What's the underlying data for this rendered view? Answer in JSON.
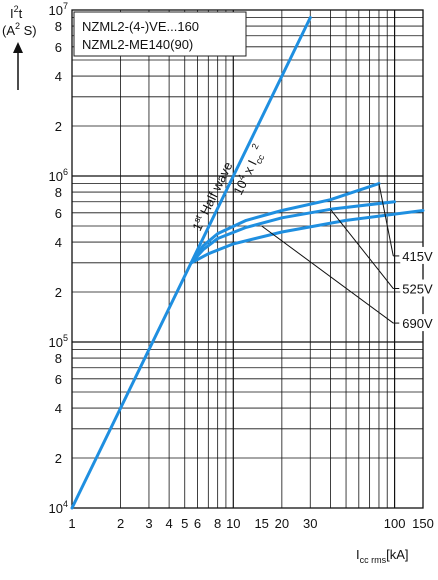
{
  "chart_data": {
    "type": "line",
    "xscale": "log",
    "yscale": "log",
    "xlim": [
      1,
      150
    ],
    "ylim": [
      10000,
      10000000
    ],
    "grid": true,
    "ylabel": {
      "main": "I",
      "sup": "2",
      "tail": "t",
      "unit_open": "(A",
      "unit_sup": "2",
      "unit_close": " S)"
    },
    "xlabel": {
      "main": "I",
      "sub": "cc rms",
      "tail": "[kA]"
    },
    "legend_box": {
      "line1": "NZML2-(4-)VE...160",
      "line2": "NZML2-ME140(90)",
      "placement": "top-left"
    },
    "x_tick_labels": [
      {
        "value": 1,
        "text": "1"
      },
      {
        "value": 2,
        "text": "2"
      },
      {
        "value": 3,
        "text": "3"
      },
      {
        "value": 4,
        "text": "4"
      },
      {
        "value": 5,
        "text": "5"
      },
      {
        "value": 6,
        "text": "6"
      },
      {
        "value": 8,
        "text": "8"
      },
      {
        "value": 10,
        "text": "10"
      },
      {
        "value": 15,
        "text": "15"
      },
      {
        "value": 20,
        "text": "20"
      },
      {
        "value": 30,
        "text": "30"
      },
      {
        "value": 100,
        "text": "100"
      },
      {
        "value": 150,
        "text": "150"
      }
    ],
    "y_tick_labels": [
      {
        "value": 10000,
        "mant": "10",
        "exp": "4"
      },
      {
        "value": 20000,
        "mant": "2",
        "exp": ""
      },
      {
        "value": 40000,
        "mant": "4",
        "exp": ""
      },
      {
        "value": 60000,
        "mant": "6",
        "exp": ""
      },
      {
        "value": 80000,
        "mant": "8",
        "exp": ""
      },
      {
        "value": 100000,
        "mant": "10",
        "exp": "5"
      },
      {
        "value": 200000,
        "mant": "2",
        "exp": ""
      },
      {
        "value": 400000,
        "mant": "4",
        "exp": ""
      },
      {
        "value": 600000,
        "mant": "6",
        "exp": ""
      },
      {
        "value": 800000,
        "mant": "8",
        "exp": ""
      },
      {
        "value": 1000000,
        "mant": "10",
        "exp": "6"
      },
      {
        "value": 2000000,
        "mant": "2",
        "exp": ""
      },
      {
        "value": 4000000,
        "mant": "4",
        "exp": ""
      },
      {
        "value": 6000000,
        "mant": "6",
        "exp": ""
      },
      {
        "value": 8000000,
        "mant": "8",
        "exp": ""
      },
      {
        "value": 10000000,
        "mant": "10",
        "exp": "7"
      }
    ],
    "half_wave_label": {
      "pre": "1",
      "sup": "st",
      "post": " Half wave"
    },
    "formula_label": {
      "pre": "10",
      "sup": "4",
      "mid": " x I",
      "sub": "cc",
      "tail": " 2"
    },
    "series": [
      {
        "name": "1st Half wave 10^4 x Icc^2",
        "color": "#1f8fe0",
        "points": [
          [
            1,
            10000
          ],
          [
            30,
            9000000
          ]
        ]
      },
      {
        "name": "415V",
        "color": "#1f8fe0",
        "points": [
          [
            5.5,
            300000
          ],
          [
            6.5,
            380000
          ],
          [
            8,
            450000
          ],
          [
            12,
            540000
          ],
          [
            20,
            620000
          ],
          [
            40,
            720000
          ],
          [
            80,
            900000
          ]
        ]
      },
      {
        "name": "525V",
        "color": "#1f8fe0",
        "points": [
          [
            5.5,
            300000
          ],
          [
            6.5,
            360000
          ],
          [
            8,
            420000
          ],
          [
            12,
            490000
          ],
          [
            20,
            560000
          ],
          [
            40,
            630000
          ],
          [
            100,
            700000
          ]
        ]
      },
      {
        "name": "690V",
        "color": "#1f8fe0",
        "points": [
          [
            5.5,
            300000
          ],
          [
            7,
            340000
          ],
          [
            10,
            390000
          ],
          [
            20,
            460000
          ],
          [
            50,
            540000
          ],
          [
            150,
            620000
          ]
        ]
      }
    ],
    "annotations": [
      {
        "text": "415V",
        "target": [
          80,
          900000
        ],
        "label_at": [
          110,
          330000
        ]
      },
      {
        "text": "525V",
        "target": [
          40,
          630000
        ],
        "label_at": [
          110,
          210000
        ]
      },
      {
        "text": "690V",
        "target": [
          15,
          500000
        ],
        "label_at": [
          110,
          130000
        ]
      }
    ]
  }
}
